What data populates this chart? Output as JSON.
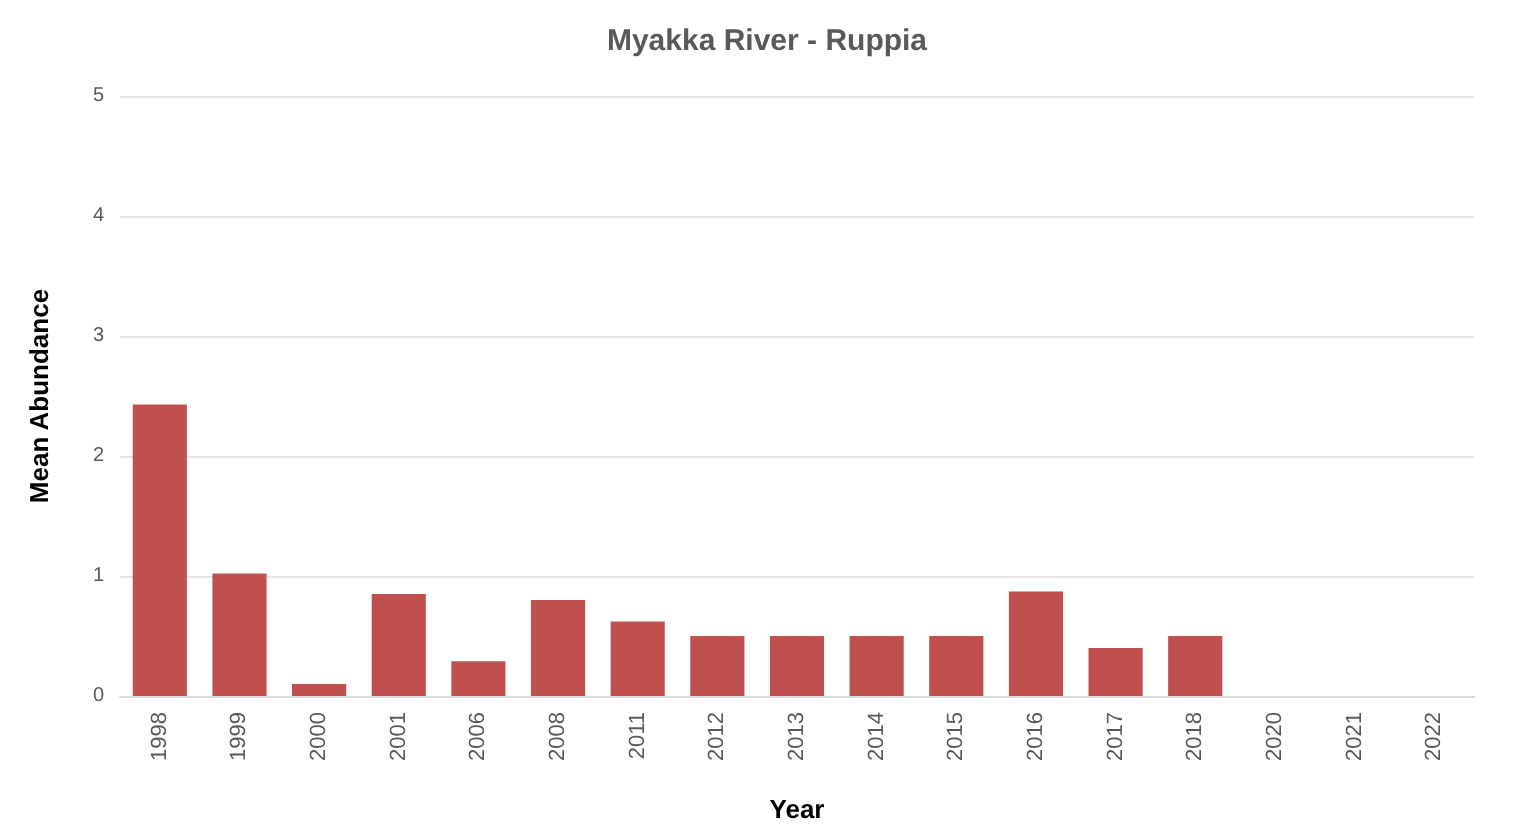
{
  "chart_data": {
    "type": "bar",
    "title": "Myakka River - Ruppia",
    "xlabel": "Year",
    "ylabel": "Mean Abundance",
    "categories": [
      "1998",
      "1999",
      "2000",
      "2001",
      "2006",
      "2008",
      "2011",
      "2012",
      "2013",
      "2014",
      "2015",
      "2016",
      "2017",
      "2018",
      "2020",
      "2021",
      "2022"
    ],
    "values": [
      2.43,
      1.02,
      0.1,
      0.85,
      0.29,
      0.8,
      0.62,
      0.5,
      0.5,
      0.5,
      0.5,
      0.87,
      0.4,
      0.5,
      null,
      null,
      null
    ],
    "color": "#c0504d",
    "ylim": [
      0,
      5
    ],
    "yticks": [
      0,
      1,
      2,
      3,
      4,
      5
    ],
    "grid": "y"
  }
}
